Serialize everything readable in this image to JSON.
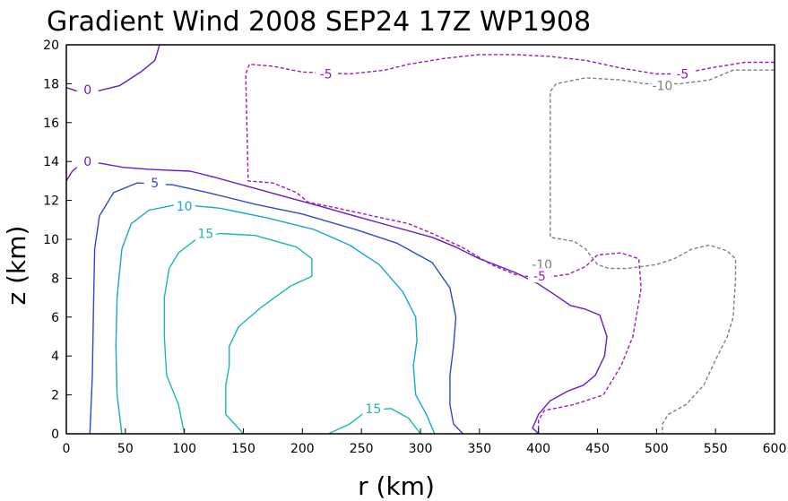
{
  "chart_data": {
    "type": "contour",
    "title": "Gradient Wind 2008 SEP24 17Z  WP1908",
    "xlabel": "r (km)",
    "ylabel": "z (km)",
    "xlim": [
      0,
      600
    ],
    "ylim": [
      0,
      20
    ],
    "x_ticks": [
      "0",
      "50",
      "100",
      "150",
      "200",
      "250",
      "300",
      "350",
      "400",
      "450",
      "500",
      "550",
      "600"
    ],
    "y_ticks": [
      "0",
      "2",
      "4",
      "6",
      "8",
      "10",
      "12",
      "14",
      "16",
      "18",
      "20"
    ],
    "grid": false,
    "colors": {
      "c0": "#6a1bc8",
      "c5": "#2a4bd4",
      "c10": "#1aa6c8",
      "c15": "#1ab8b0",
      "cneg5": "#9a1ac0",
      "cneg10": "#808080"
    },
    "contours": [
      {
        "id": "zero-top",
        "level": "0",
        "color_key": "c0",
        "dashed": false,
        "points": [
          [
            0,
            17.8
          ],
          [
            10,
            17.6
          ],
          [
            25,
            17.6
          ],
          [
            45,
            17.9
          ],
          [
            63,
            18.6
          ],
          [
            75,
            19.2
          ],
          [
            79,
            20
          ]
        ],
        "label": {
          "text": "0",
          "x": 18,
          "y": 17.7
        }
      },
      {
        "id": "zero-main",
        "level": "0",
        "color_key": "c0",
        "dashed": false,
        "points": [
          [
            0,
            13.0
          ],
          [
            5,
            13.5
          ],
          [
            15,
            14.0
          ],
          [
            30,
            13.9
          ],
          [
            48,
            13.7
          ],
          [
            70,
            13.6
          ],
          [
            105,
            13.5
          ],
          [
            125,
            13.2
          ],
          [
            155,
            12.7
          ],
          [
            185,
            12.2
          ],
          [
            215,
            11.7
          ],
          [
            250,
            11.1
          ],
          [
            280,
            10.6
          ],
          [
            310,
            10.1
          ],
          [
            330,
            9.6
          ],
          [
            350,
            9.0
          ],
          [
            380,
            8.3
          ],
          [
            400,
            7.7
          ],
          [
            415,
            7.1
          ],
          [
            427,
            6.6
          ],
          [
            440,
            6.4
          ],
          [
            452,
            6.1
          ],
          [
            458,
            5.0
          ],
          [
            456,
            4.0
          ],
          [
            448,
            3.0
          ],
          [
            438,
            2.5
          ],
          [
            425,
            2.2
          ],
          [
            410,
            1.7
          ],
          [
            400,
            1.0
          ],
          [
            395,
            0.3
          ],
          [
            400,
            0
          ]
        ],
        "label": {
          "text": "0",
          "x": 18,
          "y": 14.0
        }
      },
      {
        "id": "five-pos",
        "level": "5",
        "color_key": "c5",
        "dashed": false,
        "points": [
          [
            20,
            0
          ],
          [
            22,
            3.0
          ],
          [
            23,
            6.5
          ],
          [
            24,
            9.5
          ],
          [
            28,
            11.2
          ],
          [
            40,
            12.4
          ],
          [
            60,
            12.9
          ],
          [
            90,
            12.8
          ],
          [
            120,
            12.4
          ],
          [
            160,
            11.8
          ],
          [
            200,
            11.3
          ],
          [
            245,
            10.5
          ],
          [
            280,
            9.8
          ],
          [
            310,
            8.8
          ],
          [
            325,
            7.5
          ],
          [
            330,
            6.0
          ],
          [
            328,
            4.5
          ],
          [
            325,
            3.0
          ],
          [
            325,
            1.5
          ],
          [
            328,
            0.5
          ],
          [
            336,
            0
          ]
        ],
        "label": {
          "text": "5",
          "x": 75,
          "y": 12.9
        }
      },
      {
        "id": "ten-pos",
        "level": "10",
        "color_key": "c10",
        "dashed": false,
        "points": [
          [
            47,
            0
          ],
          [
            43,
            2.0
          ],
          [
            42,
            4.5
          ],
          [
            43,
            7.0
          ],
          [
            47,
            9.5
          ],
          [
            55,
            10.8
          ],
          [
            70,
            11.5
          ],
          [
            95,
            11.8
          ],
          [
            130,
            11.6
          ],
          [
            170,
            11.1
          ],
          [
            210,
            10.5
          ],
          [
            240,
            9.7
          ],
          [
            265,
            8.7
          ],
          [
            285,
            7.3
          ],
          [
            296,
            6.0
          ],
          [
            297,
            4.8
          ],
          [
            294,
            3.5
          ],
          [
            296,
            2.0
          ],
          [
            305,
            1.0
          ],
          [
            312,
            0
          ]
        ],
        "label": {
          "text": "10",
          "x": 100,
          "y": 11.7
        }
      },
      {
        "id": "fifteen-core",
        "level": "15",
        "color_key": "c15",
        "dashed": false,
        "points": [
          [
            150,
            0
          ],
          [
            135,
            1.0
          ],
          [
            135,
            2.5
          ],
          [
            138,
            3.5
          ],
          [
            138,
            4.5
          ],
          [
            146,
            5.5
          ],
          [
            165,
            6.5
          ],
          [
            190,
            7.6
          ],
          [
            208,
            8.1
          ],
          [
            208,
            9.0
          ],
          [
            195,
            9.6
          ],
          [
            160,
            10.2
          ],
          [
            130,
            10.3
          ],
          [
            110,
            10.0
          ],
          [
            95,
            9.3
          ],
          [
            87,
            8.5
          ],
          [
            83,
            7.0
          ],
          [
            83,
            5.0
          ],
          [
            85,
            3.0
          ],
          [
            95,
            1.5
          ],
          [
            100,
            0
          ]
        ],
        "label": {
          "text": "15",
          "x": 118,
          "y": 10.3
        }
      },
      {
        "id": "fifteen-bottom",
        "level": "15",
        "color_key": "c15",
        "dashed": false,
        "points": [
          [
            222,
            0
          ],
          [
            240,
            0.5
          ],
          [
            255,
            1.2
          ],
          [
            275,
            1.3
          ],
          [
            290,
            0.8
          ],
          [
            300,
            0
          ]
        ],
        "label": {
          "text": "15",
          "x": 260,
          "y": 1.3
        }
      },
      {
        "id": "neg-five",
        "level": "-5",
        "color_key": "cneg5",
        "dashed": true,
        "points": [
          [
            600,
            19.1
          ],
          [
            575,
            19.1
          ],
          [
            545,
            18.8
          ],
          [
            520,
            18.5
          ],
          [
            500,
            18.5
          ],
          [
            470,
            18.8
          ],
          [
            440,
            19.2
          ],
          [
            410,
            19.4
          ],
          [
            380,
            19.5
          ],
          [
            350,
            19.5
          ],
          [
            320,
            19.3
          ],
          [
            290,
            19.0
          ],
          [
            270,
            18.7
          ],
          [
            240,
            18.5
          ],
          [
            200,
            18.6
          ],
          [
            175,
            18.9
          ],
          [
            155,
            19.0
          ],
          [
            152,
            18.5
          ],
          [
            154,
            13.0
          ],
          [
            175,
            12.9
          ],
          [
            195,
            12.4
          ],
          [
            205,
            11.9
          ],
          [
            230,
            11.6
          ],
          [
            260,
            11.2
          ],
          [
            290,
            10.8
          ],
          [
            310,
            10.3
          ],
          [
            335,
            9.6
          ],
          [
            360,
            8.7
          ],
          [
            380,
            8.2
          ],
          [
            400,
            8.0
          ],
          [
            425,
            8.2
          ],
          [
            440,
            8.6
          ],
          [
            450,
            9.2
          ],
          [
            470,
            9.3
          ],
          [
            485,
            9.0
          ],
          [
            487,
            7.5
          ],
          [
            480,
            5.0
          ],
          [
            470,
            3.5
          ],
          [
            455,
            2.0
          ],
          [
            430,
            1.5
          ],
          [
            405,
            1.2
          ],
          [
            400,
            0.7
          ],
          [
            400,
            0
          ]
        ],
        "label": {
          "text": "-5",
          "x": 220,
          "y": 18.5
        }
      },
      {
        "id": "neg-ten",
        "level": "-10",
        "color_key": "cneg10",
        "dashed": true,
        "points": [
          [
            600,
            18.7
          ],
          [
            565,
            18.7
          ],
          [
            545,
            18.2
          ],
          [
            520,
            18.0
          ],
          [
            490,
            18.0
          ],
          [
            470,
            18.2
          ],
          [
            440,
            18.3
          ],
          [
            415,
            18.0
          ],
          [
            410,
            17.6
          ],
          [
            410,
            10.1
          ],
          [
            430,
            9.9
          ],
          [
            440,
            9.5
          ],
          [
            450,
            8.7
          ],
          [
            460,
            8.5
          ],
          [
            475,
            8.5
          ],
          [
            500,
            8.7
          ],
          [
            515,
            9.0
          ],
          [
            530,
            9.5
          ],
          [
            545,
            9.7
          ],
          [
            560,
            9.4
          ],
          [
            567,
            9.0
          ],
          [
            567,
            8.0
          ],
          [
            565,
            6.0
          ],
          [
            560,
            5.0
          ],
          [
            550,
            3.8
          ],
          [
            540,
            2.5
          ],
          [
            525,
            1.5
          ],
          [
            510,
            1.0
          ],
          [
            505,
            0.5
          ],
          [
            505,
            0
          ]
        ],
        "label": {
          "text": "-10",
          "x": 505,
          "y": 17.9
        }
      }
    ],
    "extra_labels": [
      {
        "text": "-10",
        "x": 403,
        "y": 8.7,
        "color_key": "cneg10"
      },
      {
        "text": "-5",
        "x": 401,
        "y": 8.1,
        "color_key": "cneg5"
      },
      {
        "text": "-5",
        "x": 522,
        "y": 18.5,
        "color_key": "cneg5"
      }
    ]
  }
}
